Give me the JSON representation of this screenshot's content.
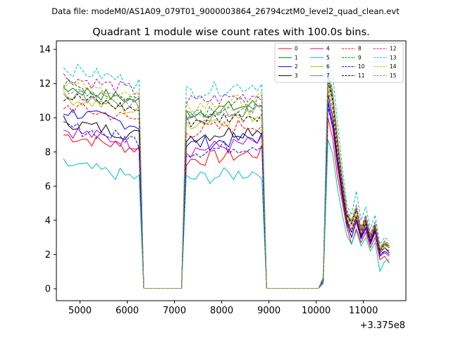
{
  "figure": {
    "suptitle": "Data file: modeM0/AS1A09_079T01_9000003864_26794cztM0_level2_quad_clean.evt"
  },
  "chart_data": {
    "type": "line",
    "title": "Quadrant 1 module wise count rates with 100.0s bins.",
    "xlabel": "",
    "ylabel": "",
    "offset_label": "+3.375e8",
    "xlim": [
      4500,
      11900
    ],
    "ylim": [
      -0.7,
      14.5
    ],
    "xticks": [
      5000,
      6000,
      7000,
      8000,
      9000,
      10000,
      11000
    ],
    "xtick_labels": [
      "5000",
      "6000",
      "7000",
      "8000",
      "9000",
      "10000",
      "11000"
    ],
    "yticks": [
      0,
      2,
      4,
      6,
      8,
      10,
      12,
      14
    ],
    "ytick_labels": [
      "0",
      "2",
      "4",
      "6",
      "8",
      "10",
      "12",
      "14"
    ],
    "legend": {
      "placement": "top-right",
      "ncol": 4
    },
    "x_segments": [
      {
        "start": 4650,
        "end": 6250,
        "step": 100
      },
      {
        "start": 6350,
        "end": 7150,
        "step": 100
      },
      {
        "start": 7250,
        "end": 8850,
        "step": 100
      },
      {
        "start": 8950,
        "end": 10050,
        "step": 100
      },
      {
        "start": 10150,
        "end": 11550,
        "step": 100
      }
    ],
    "series": [
      {
        "name": "0",
        "color": "#ff0000",
        "dashed": false,
        "seg1": 9.0,
        "seg3": 7.5,
        "seg5": [
          0.4,
          10.0,
          8.8,
          6.6,
          5.1,
          3.6,
          2.6,
          3.5,
          2.7,
          3.3,
          2.4,
          3.0,
          1.7,
          1.9,
          1.5
        ]
      },
      {
        "name": "1",
        "color": "#008000",
        "dashed": false,
        "seg1": 11.8,
        "seg3": 10.3,
        "seg5": [
          0.6,
          12.3,
          11.2,
          8.7,
          6.4,
          4.3,
          3.9,
          4.6,
          3.4,
          4.1,
          3.1,
          3.7,
          2.3,
          2.6,
          2.5
        ]
      },
      {
        "name": "2",
        "color": "#0000ff",
        "dashed": false,
        "seg1": 10.4,
        "seg3": 8.4,
        "seg5": [
          0.5,
          11.0,
          9.6,
          7.4,
          5.6,
          3.9,
          3.0,
          4.0,
          3.0,
          3.6,
          2.7,
          3.4,
          2.0,
          2.2,
          2.0
        ]
      },
      {
        "name": "3",
        "color": "#000000",
        "dashed": false,
        "seg1": 9.8,
        "seg3": 8.9,
        "seg5": [
          0.5,
          11.4,
          10.0,
          7.7,
          5.8,
          4.0,
          3.3,
          4.2,
          3.1,
          3.8,
          2.8,
          3.5,
          2.1,
          2.4,
          2.1
        ]
      },
      {
        "name": "4",
        "color": "#c000c0",
        "dashed": false,
        "seg1": 9.3,
        "seg3": 8.1,
        "seg5": [
          0.5,
          10.6,
          9.4,
          7.2,
          5.4,
          3.8,
          3.0,
          3.9,
          2.9,
          3.5,
          2.6,
          3.3,
          1.9,
          2.1,
          1.9
        ]
      },
      {
        "name": "5",
        "color": "#00bfbf",
        "dashed": false,
        "seg1": 7.3,
        "seg3": 6.4,
        "seg5": [
          0.3,
          8.7,
          7.9,
          5.9,
          4.4,
          3.1,
          2.6,
          3.4,
          2.5,
          3.0,
          2.2,
          2.7,
          1.0,
          1.6,
          1.7
        ]
      },
      {
        "name": "6",
        "color": "#bfbf00",
        "dashed": false,
        "seg1": 11.2,
        "seg3": 9.7,
        "seg5": [
          0.6,
          12.0,
          10.9,
          8.4,
          6.1,
          4.2,
          3.7,
          4.5,
          3.3,
          4.0,
          3.0,
          3.6,
          2.2,
          2.5,
          2.4
        ]
      },
      {
        "name": "7",
        "color": "#808080",
        "dashed": false,
        "seg1": 11.5,
        "seg3": 10.0,
        "seg5": [
          0.6,
          12.5,
          11.4,
          8.8,
          6.5,
          4.4,
          3.9,
          4.7,
          3.5,
          4.2,
          3.1,
          3.8,
          2.3,
          2.7,
          2.5
        ]
      },
      {
        "name": "8",
        "color": "#ff0000",
        "dashed": true,
        "seg1": 10.7,
        "seg3": 9.2,
        "seg5": [
          0.5,
          11.7,
          10.5,
          8.0,
          5.9,
          4.1,
          3.5,
          4.3,
          3.2,
          3.9,
          2.9,
          3.6,
          2.1,
          2.4,
          2.2
        ]
      },
      {
        "name": "9",
        "color": "#008000",
        "dashed": true,
        "seg1": 11.9,
        "seg3": 10.4,
        "seg5": [
          0.6,
          12.4,
          11.3,
          8.7,
          6.4,
          4.4,
          3.9,
          4.7,
          3.4,
          4.1,
          3.1,
          3.8,
          2.3,
          2.7,
          2.5
        ]
      },
      {
        "name": "10",
        "color": "#0000ff",
        "dashed": true,
        "seg1": 9.5,
        "seg3": 8.0,
        "seg5": [
          0.5,
          10.8,
          9.5,
          7.3,
          5.5,
          3.8,
          3.0,
          4.0,
          2.9,
          3.5,
          2.6,
          3.3,
          1.9,
          2.2,
          2.0
        ]
      },
      {
        "name": "11",
        "color": "#000000",
        "dashed": true,
        "seg1": 11.3,
        "seg3": 9.8,
        "seg5": [
          0.6,
          12.1,
          11.0,
          8.5,
          6.2,
          4.3,
          3.8,
          4.6,
          3.4,
          4.0,
          3.0,
          3.7,
          2.2,
          2.6,
          2.4
        ]
      },
      {
        "name": "12",
        "color": "#c000c0",
        "dashed": true,
        "seg1": 12.4,
        "seg3": 10.9,
        "seg5": [
          0.7,
          12.8,
          11.6,
          9.0,
          6.6,
          4.6,
          4.0,
          4.9,
          3.6,
          4.3,
          3.2,
          3.9,
          2.4,
          2.8,
          2.6
        ]
      },
      {
        "name": "13",
        "color": "#00bfbf",
        "dashed": true,
        "seg1": 12.9,
        "seg3": 11.5,
        "seg5": [
          0.7,
          13.6,
          12.5,
          9.8,
          7.2,
          4.9,
          4.3,
          5.7,
          4.0,
          4.8,
          3.5,
          4.3,
          2.6,
          3.0,
          2.8
        ]
      },
      {
        "name": "14",
        "color": "#bfbf00",
        "dashed": true,
        "seg1": 12.0,
        "seg3": 10.6,
        "seg5": [
          0.6,
          12.6,
          11.5,
          8.9,
          6.5,
          4.5,
          4.0,
          4.8,
          3.5,
          4.2,
          3.1,
          3.8,
          2.4,
          2.8,
          2.6
        ]
      },
      {
        "name": "15",
        "color": "#808080",
        "dashed": true,
        "seg1": 11.7,
        "seg3": 10.2,
        "seg5": [
          0.6,
          12.3,
          11.2,
          8.6,
          6.3,
          4.4,
          3.9,
          4.6,
          3.4,
          4.1,
          3.0,
          3.7,
          2.3,
          2.6,
          2.4
        ]
      }
    ]
  }
}
